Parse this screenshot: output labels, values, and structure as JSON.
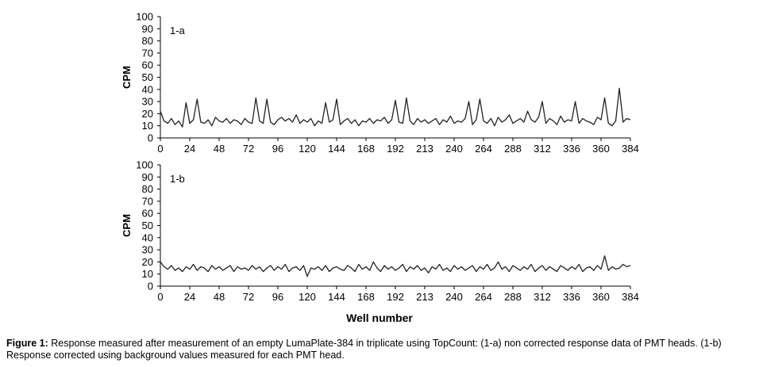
{
  "xlabel": "Well number",
  "caption": {
    "label": "Figure 1:",
    "text": "Response measured after measurement of an empty LumaPlate-384 in triplicate using TopCount: (1-a) non corrected response data of PMT heads. (1-b) Response corrected using background values measured for each PMT  head."
  },
  "chart_data": [
    {
      "type": "line",
      "panel_label": "1-a",
      "ylabel": "CPM",
      "xlabel": "",
      "ylim": [
        0,
        100
      ],
      "yticks": [
        0,
        10,
        20,
        30,
        40,
        50,
        60,
        70,
        80,
        90,
        100
      ],
      "xlim": [
        0,
        384
      ],
      "xticks": [
        "0",
        "24",
        "48",
        "72",
        "96",
        "120",
        "144",
        "168",
        "192",
        "213",
        "240",
        "264",
        "288",
        "312",
        "336",
        "360",
        "384"
      ],
      "grid": false,
      "series": [
        {
          "color": "#222222",
          "x": [
            0,
            3,
            6,
            9,
            12,
            15,
            18,
            21,
            24,
            27,
            30,
            33,
            36,
            39,
            42,
            45,
            48,
            51,
            54,
            57,
            60,
            63,
            66,
            69,
            72,
            75,
            78,
            81,
            84,
            87,
            90,
            93,
            96,
            99,
            102,
            105,
            108,
            111,
            114,
            117,
            120,
            123,
            126,
            129,
            132,
            135,
            138,
            141,
            144,
            147,
            150,
            153,
            156,
            159,
            162,
            165,
            168,
            171,
            174,
            177,
            180,
            183,
            186,
            189,
            192,
            195,
            198,
            201,
            204,
            207,
            210,
            213,
            216,
            219,
            222,
            225,
            228,
            231,
            234,
            237,
            240,
            243,
            246,
            249,
            252,
            255,
            258,
            261,
            264,
            267,
            270,
            273,
            276,
            279,
            282,
            285,
            288,
            291,
            294,
            297,
            300,
            303,
            306,
            309,
            312,
            315,
            318,
            321,
            324,
            327,
            330,
            333,
            336,
            339,
            342,
            345,
            348,
            351,
            354,
            357,
            360,
            363,
            366,
            369,
            372,
            375,
            378,
            381,
            384
          ],
          "y": [
            22,
            14,
            12,
            16,
            11,
            14,
            9,
            29,
            12,
            15,
            32,
            13,
            12,
            15,
            10,
            17,
            14,
            13,
            16,
            12,
            15,
            14,
            11,
            16,
            13,
            12,
            33,
            14,
            12,
            32,
            13,
            11,
            15,
            17,
            14,
            16,
            13,
            19,
            12,
            15,
            13,
            16,
            10,
            14,
            12,
            29,
            13,
            15,
            32,
            11,
            14,
            16,
            12,
            15,
            10,
            14,
            13,
            16,
            12,
            15,
            14,
            17,
            12,
            15,
            31,
            13,
            12,
            33,
            14,
            11,
            16,
            13,
            15,
            12,
            14,
            16,
            11,
            15,
            13,
            18,
            12,
            14,
            13,
            16,
            30,
            11,
            15,
            32,
            14,
            12,
            16,
            10,
            17,
            13,
            15,
            19,
            12,
            14,
            16,
            13,
            22,
            15,
            13,
            17,
            30,
            12,
            16,
            14,
            11,
            18,
            13,
            15,
            14,
            30,
            12,
            16,
            14,
            13,
            11,
            17,
            15,
            33,
            12,
            10,
            14,
            41,
            13,
            16,
            15
          ]
        }
      ]
    },
    {
      "type": "line",
      "panel_label": "1-b",
      "ylabel": "CPM",
      "xlabel": "Well number",
      "ylim": [
        0,
        100
      ],
      "yticks": [
        0,
        10,
        20,
        30,
        40,
        50,
        60,
        70,
        80,
        90,
        100
      ],
      "xlim": [
        0,
        384
      ],
      "xticks": [
        "0",
        "24",
        "48",
        "72",
        "96",
        "120",
        "144",
        "168",
        "192",
        "213",
        "240",
        "264",
        "288",
        "312",
        "336",
        "360",
        "384"
      ],
      "grid": false,
      "series": [
        {
          "color": "#222222",
          "x": [
            0,
            3,
            6,
            9,
            12,
            15,
            18,
            21,
            24,
            27,
            30,
            33,
            36,
            39,
            42,
            45,
            48,
            51,
            54,
            57,
            60,
            63,
            66,
            69,
            72,
            75,
            78,
            81,
            84,
            87,
            90,
            93,
            96,
            99,
            102,
            105,
            108,
            111,
            114,
            117,
            120,
            123,
            126,
            129,
            132,
            135,
            138,
            141,
            144,
            147,
            150,
            153,
            156,
            159,
            162,
            165,
            168,
            171,
            174,
            177,
            180,
            183,
            186,
            189,
            192,
            195,
            198,
            201,
            204,
            207,
            210,
            213,
            216,
            219,
            222,
            225,
            228,
            231,
            234,
            237,
            240,
            243,
            246,
            249,
            252,
            255,
            258,
            261,
            264,
            267,
            270,
            273,
            276,
            279,
            282,
            285,
            288,
            291,
            294,
            297,
            300,
            303,
            306,
            309,
            312,
            315,
            318,
            321,
            324,
            327,
            330,
            333,
            336,
            339,
            342,
            345,
            348,
            351,
            354,
            357,
            360,
            363,
            366,
            369,
            372,
            375,
            378,
            381,
            384
          ],
          "y": [
            20,
            16,
            14,
            17,
            13,
            15,
            12,
            16,
            14,
            18,
            13,
            16,
            15,
            12,
            17,
            14,
            16,
            13,
            15,
            17,
            12,
            16,
            14,
            15,
            13,
            17,
            14,
            16,
            12,
            15,
            17,
            13,
            16,
            14,
            18,
            12,
            15,
            16,
            13,
            17,
            8,
            15,
            14,
            16,
            13,
            17,
            12,
            15,
            16,
            14,
            13,
            17,
            15,
            12,
            18,
            14,
            16,
            13,
            20,
            15,
            12,
            17,
            14,
            16,
            13,
            15,
            18,
            12,
            16,
            14,
            17,
            13,
            15,
            11,
            16,
            14,
            18,
            13,
            15,
            12,
            17,
            14,
            16,
            13,
            15,
            17,
            12,
            16,
            14,
            18,
            13,
            15,
            20,
            14,
            16,
            12,
            17,
            15,
            13,
            16,
            14,
            18,
            12,
            15,
            17,
            13,
            16,
            14,
            12,
            17,
            15,
            13,
            16,
            14,
            18,
            12,
            15,
            16,
            13,
            17,
            14,
            25,
            13,
            16,
            14,
            15,
            18,
            16,
            17
          ]
        }
      ]
    }
  ]
}
